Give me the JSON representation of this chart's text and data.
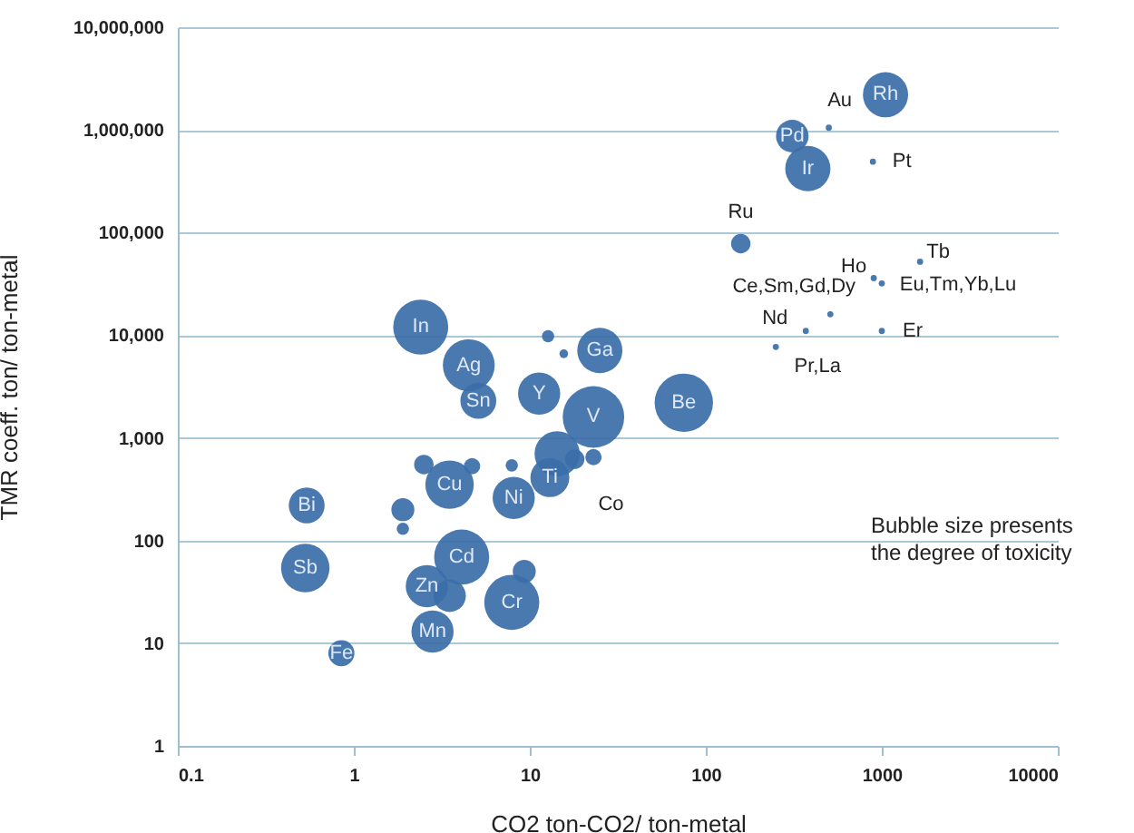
{
  "chart_data": {
    "type": "bubble",
    "xlabel": "CO2   ton-CO2/ ton-metal",
    "ylabel": "TMR coeff.   ton/ ton-metal",
    "x": [
      0.54,
      0.53,
      0.85,
      1.9,
      1.9,
      2.5,
      4.7,
      3.5,
      2.4,
      4.5,
      5.1,
      11.3,
      12.7,
      15.6,
      25,
      14.3,
      13,
      7.9,
      8.1,
      18,
      23,
      23,
      75,
      9.3,
      7.9,
      3.5,
      2.6,
      4.1,
      2.8,
      158,
      310,
      380,
      500,
      890,
      1050,
      1650,
      1000,
      900,
      510,
      370,
      1000,
      250
    ],
    "values": [
      220,
      54,
      8,
      200,
      130,
      550,
      530,
      350,
      12000,
      5100,
      2300,
      2700,
      9800,
      6600,
      7100,
      700,
      410,
      540,
      260,
      620,
      650,
      1600,
      2200,
      50,
      25,
      29,
      36,
      69,
      13,
      78000,
      870000,
      420000,
      1050000,
      490000,
      2200000,
      52000,
      32000,
      36000,
      16000,
      11000,
      11000,
      7700
    ],
    "sizes": [
      0.34,
      0.62,
      0.18,
      0.14,
      0.04,
      0.1,
      0.07,
      0.62,
      0.8,
      0.71,
      0.34,
      0.47,
      0.04,
      0.02,
      0.54,
      0.54,
      0.4,
      0.04,
      0.47,
      0.1,
      0.07,
      1,
      0.9,
      0.14,
      0.8,
      0.28,
      0.47,
      0.8,
      0.47,
      0.1,
      0.28,
      0.54,
      0.01,
      0.01,
      0.54,
      0.01,
      0.01,
      0.01,
      0.01,
      0.01,
      0.01,
      0.01
    ],
    "color": "#3b6ea8",
    "marker": "circle",
    "xlim": [
      0.1,
      10000
    ],
    "ylim": [
      1,
      10000000
    ],
    "xticks": [
      0.1,
      1,
      10,
      100,
      1000,
      10000
    ],
    "yticks": [
      1,
      10,
      100,
      {
        "value": 1000,
        "label": "1,000"
      },
      {
        "value": 10000,
        "label": "10,000"
      },
      {
        "value": 100000,
        "label": "100,000"
      },
      {
        "value": 1000000,
        "label": "1,000,000"
      },
      {
        "value": 10000000,
        "label": "10,000,000"
      }
    ],
    "log": "xy",
    "grid": "y",
    "annotations": [
      {
        "text": "Bi",
        "x": 0.54,
        "y": 220
      },
      {
        "text": "Sb",
        "x": 0.53,
        "y": 54
      },
      {
        "text": "Fe",
        "x": 0.85,
        "y": 8
      },
      {
        "text": "Cu",
        "x": 3.5,
        "y": 350
      },
      {
        "text": "In",
        "x": 2.4,
        "y": 12000
      },
      {
        "text": "Ag",
        "x": 4.5,
        "y": 5100
      },
      {
        "text": "Sn",
        "x": 5.1,
        "y": 2300
      },
      {
        "text": "Y",
        "x": 11.3,
        "y": 2700
      },
      {
        "text": "Ga",
        "x": 25,
        "y": 7100
      },
      {
        "text": "Ti",
        "x": 13,
        "y": 410
      },
      {
        "text": "Ni",
        "x": 8.1,
        "y": 260
      },
      {
        "text": "V",
        "x": 23,
        "y": 1600
      },
      {
        "text": "Be",
        "x": 75,
        "y": 2200
      },
      {
        "text": "Cr",
        "x": 7.9,
        "y": 25
      },
      {
        "text": "Zn",
        "x": 2.6,
        "y": 36
      },
      {
        "text": "Cd",
        "x": 4.1,
        "y": 69
      },
      {
        "text": "Mn",
        "x": 2.8,
        "y": 13
      },
      {
        "text": "Pd",
        "x": 310,
        "y": 870000
      },
      {
        "text": "Ir",
        "x": 380,
        "y": 420000
      },
      {
        "text": "Rh",
        "x": 1050,
        "y": 2200000
      },
      {
        "text": "Co",
        "x": 18,
        "y": 620
      },
      {
        "text": "Au",
        "x": 500,
        "y": 1050000
      },
      {
        "text": "Pt",
        "x": 890,
        "y": 490000
      },
      {
        "text": "Ru",
        "x": 158,
        "y": 78000
      },
      {
        "text": "Tb",
        "x": 1650,
        "y": 52000
      },
      {
        "text": "Ho",
        "x": 900,
        "y": 36000
      },
      {
        "text": "Ce,Sm,Gd,Dy",
        "x": 510,
        "y": 16000
      },
      {
        "text": "Eu,Tm,Yb,Lu",
        "x": 1000,
        "y": 32000
      },
      {
        "text": "Nd",
        "x": 370,
        "y": 11000
      },
      {
        "text": "Er",
        "x": 1000,
        "y": 11000
      },
      {
        "text": "Pr,La",
        "x": 250,
        "y": 7700
      },
      "Bubble size presents the degree of toxicity"
    ]
  }
}
